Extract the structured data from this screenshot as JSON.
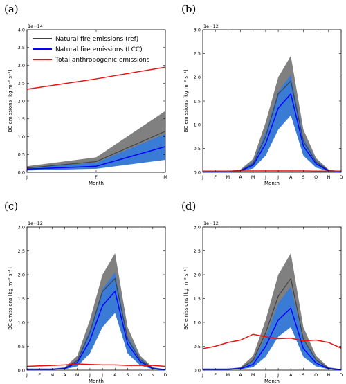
{
  "colors": {
    "ref_line": "#404040",
    "ref_band": "#808080",
    "lcc_line": "#0000ff",
    "lcc_band": "#3a7bd5",
    "anthro_line": "#e8110f"
  },
  "legend": {
    "entries": [
      {
        "label": "Natural fire emissions (ref)",
        "color_key": "ref_line"
      },
      {
        "label": "Natural fire emissions (LCC)",
        "color_key": "lcc_line"
      },
      {
        "label": "Total anthropogenic emissions",
        "color_key": "anthro_line"
      }
    ]
  },
  "chart_data": [
    {
      "panel": "(a)",
      "type": "area",
      "x_categories": [
        "J",
        "F",
        "M"
      ],
      "xlabel": "Month",
      "ylabel": "BC emissions [kg m⁻² s⁻¹]",
      "multiplier": "1e−14",
      "ylim": [
        0,
        4.0
      ],
      "yticks": [
        "0.0",
        "0.5",
        "1.0",
        "1.5",
        "2.0",
        "2.5",
        "3.0",
        "3.5",
        "4.0"
      ],
      "ytick_values": [
        0,
        0.5,
        1.0,
        1.5,
        2.0,
        2.5,
        3.0,
        3.5,
        4.0
      ],
      "legend_position": "upper-left",
      "series": [
        {
          "name": "Natural fire emissions (ref)",
          "color_key": "ref_line",
          "values": [
            0.12,
            0.3,
            1.15
          ],
          "band_lower": [
            0.08,
            0.22,
            0.6
          ],
          "band_upper": [
            0.17,
            0.42,
            1.72
          ],
          "band_color_key": "ref_band"
        },
        {
          "name": "Natural fire emissions (LCC)",
          "color_key": "lcc_line",
          "values": [
            0.09,
            0.17,
            0.72
          ],
          "band_lower": [
            0.05,
            0.1,
            0.35
          ],
          "band_upper": [
            0.13,
            0.27,
            1.08
          ],
          "band_color_key": "lcc_band"
        },
        {
          "name": "Total anthropogenic emissions",
          "color_key": "anthro_line",
          "values": [
            2.33,
            2.62,
            2.95
          ]
        }
      ]
    },
    {
      "panel": "(b)",
      "type": "area",
      "x_categories": [
        "J",
        "F",
        "M",
        "A",
        "M",
        "J",
        "J",
        "A",
        "S",
        "O",
        "N",
        "D"
      ],
      "xlabel": "Month",
      "ylabel": "BC emissions [kg m⁻² s⁻¹]",
      "multiplier": "1e−12",
      "ylim": [
        0,
        3.0
      ],
      "yticks": [
        "0.0",
        "0.5",
        "1.0",
        "1.5",
        "2.0",
        "2.5",
        "3.0"
      ],
      "ytick_values": [
        0,
        0.5,
        1.0,
        1.5,
        2.0,
        2.5,
        3.0
      ],
      "series": [
        {
          "name": "Natural fire emissions (ref)",
          "color_key": "ref_line",
          "values": [
            0.02,
            0.02,
            0.02,
            0.04,
            0.18,
            0.75,
            1.65,
            1.92,
            0.65,
            0.22,
            0.04,
            0.01
          ],
          "band_lower": [
            0.01,
            0.01,
            0.01,
            0.02,
            0.1,
            0.45,
            1.1,
            1.3,
            0.4,
            0.12,
            0.02,
            0.0
          ],
          "band_upper": [
            0.03,
            0.03,
            0.03,
            0.06,
            0.28,
            1.05,
            2.0,
            2.45,
            0.9,
            0.3,
            0.06,
            0.02
          ],
          "band_color_key": "ref_band"
        },
        {
          "name": "Natural fire emissions (LCC)",
          "color_key": "lcc_line",
          "values": [
            0.02,
            0.02,
            0.02,
            0.03,
            0.15,
            0.6,
            1.35,
            1.65,
            0.55,
            0.18,
            0.03,
            0.01
          ],
          "band_lower": [
            0.01,
            0.01,
            0.01,
            0.02,
            0.08,
            0.35,
            0.9,
            1.2,
            0.35,
            0.1,
            0.02,
            0.0
          ],
          "band_upper": [
            0.03,
            0.03,
            0.03,
            0.05,
            0.22,
            0.85,
            1.7,
            2.05,
            0.72,
            0.25,
            0.05,
            0.02
          ],
          "band_color_key": "lcc_band"
        },
        {
          "name": "Total anthropogenic emissions",
          "color_key": "anthro_line",
          "values": [
            0.025,
            0.025,
            0.025,
            0.03,
            0.03,
            0.03,
            0.03,
            0.03,
            0.03,
            0.025,
            0.025,
            0.025
          ]
        }
      ]
    },
    {
      "panel": "(c)",
      "type": "area",
      "x_categories": [
        "J",
        "F",
        "M",
        "A",
        "M",
        "J",
        "J",
        "A",
        "S",
        "O",
        "N",
        "D"
      ],
      "xlabel": "Month",
      "ylabel": "BC emissions [kg m⁻² s⁻¹]",
      "multiplier": "1e−12",
      "ylim": [
        0,
        3.0
      ],
      "yticks": [
        "0.0",
        "0.5",
        "1.0",
        "1.5",
        "2.0",
        "2.5",
        "3.0"
      ],
      "ytick_values": [
        0,
        0.5,
        1.0,
        1.5,
        2.0,
        2.5,
        3.0
      ],
      "series": [
        {
          "name": "Natural fire emissions (ref)",
          "color_key": "ref_line",
          "values": [
            0.02,
            0.02,
            0.02,
            0.04,
            0.2,
            0.78,
            1.65,
            1.92,
            0.65,
            0.22,
            0.04,
            0.01
          ],
          "band_lower": [
            0.01,
            0.01,
            0.01,
            0.02,
            0.1,
            0.45,
            1.1,
            1.3,
            0.4,
            0.12,
            0.02,
            0.0
          ],
          "band_upper": [
            0.03,
            0.03,
            0.03,
            0.06,
            0.3,
            1.05,
            2.0,
            2.45,
            0.9,
            0.3,
            0.06,
            0.02
          ],
          "band_color_key": "ref_band"
        },
        {
          "name": "Natural fire emissions (LCC)",
          "color_key": "lcc_line",
          "values": [
            0.02,
            0.02,
            0.02,
            0.03,
            0.16,
            0.62,
            1.35,
            1.65,
            0.55,
            0.18,
            0.03,
            0.01
          ],
          "band_lower": [
            0.01,
            0.01,
            0.01,
            0.02,
            0.08,
            0.35,
            0.9,
            1.2,
            0.35,
            0.1,
            0.02,
            0.0
          ],
          "band_upper": [
            0.03,
            0.03,
            0.03,
            0.05,
            0.22,
            0.85,
            1.7,
            2.05,
            0.72,
            0.25,
            0.05,
            0.02
          ],
          "band_color_key": "lcc_band"
        },
        {
          "name": "Total anthropogenic emissions",
          "color_key": "anthro_line",
          "values": [
            0.08,
            0.09,
            0.1,
            0.11,
            0.13,
            0.12,
            0.11,
            0.11,
            0.1,
            0.1,
            0.1,
            0.08
          ]
        }
      ]
    },
    {
      "panel": "(d)",
      "type": "area",
      "x_categories": [
        "J",
        "F",
        "M",
        "A",
        "M",
        "J",
        "J",
        "A",
        "S",
        "O",
        "N",
        "D"
      ],
      "xlabel": "Month",
      "ylabel": "BC emissions [kg m⁻² s⁻¹]",
      "multiplier": "1e−12",
      "ylim": [
        0,
        3.0
      ],
      "yticks": [
        "0.0",
        "0.5",
        "1.0",
        "1.5",
        "2.0",
        "2.5",
        "3.0"
      ],
      "ytick_values": [
        0,
        0.5,
        1.0,
        1.5,
        2.0,
        2.5,
        3.0
      ],
      "series": [
        {
          "name": "Natural fire emissions (ref)",
          "color_key": "ref_line",
          "values": [
            0.02,
            0.02,
            0.02,
            0.04,
            0.2,
            0.78,
            1.55,
            1.92,
            0.65,
            0.22,
            0.04,
            0.01
          ],
          "band_lower": [
            0.01,
            0.01,
            0.01,
            0.02,
            0.1,
            0.45,
            1.1,
            1.3,
            0.4,
            0.12,
            0.02,
            0.0
          ],
          "band_upper": [
            0.03,
            0.03,
            0.03,
            0.06,
            0.3,
            1.05,
            2.0,
            2.45,
            0.9,
            0.3,
            0.06,
            0.02
          ],
          "band_color_key": "ref_band"
        },
        {
          "name": "Natural fire emissions (LCC)",
          "color_key": "lcc_line",
          "values": [
            0.02,
            0.02,
            0.02,
            0.03,
            0.12,
            0.5,
            1.05,
            1.3,
            0.45,
            0.15,
            0.03,
            0.01
          ],
          "band_lower": [
            0.01,
            0.01,
            0.01,
            0.02,
            0.06,
            0.28,
            0.7,
            0.9,
            0.28,
            0.08,
            0.02,
            0.0
          ],
          "band_upper": [
            0.03,
            0.03,
            0.03,
            0.05,
            0.18,
            0.7,
            1.4,
            1.75,
            0.62,
            0.22,
            0.05,
            0.02
          ],
          "band_color_key": "lcc_band"
        },
        {
          "name": "Total anthropogenic emissions",
          "color_key": "anthro_line",
          "values": [
            0.45,
            0.5,
            0.58,
            0.63,
            0.75,
            0.7,
            0.66,
            0.67,
            0.61,
            0.63,
            0.58,
            0.46
          ]
        }
      ]
    }
  ]
}
